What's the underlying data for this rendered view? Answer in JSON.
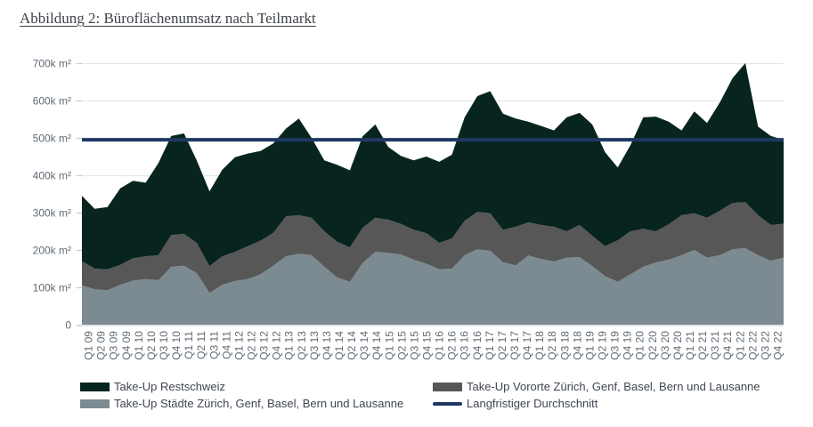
{
  "title": "Abbildung 2: Büroflächenumsatz nach Teilmarkt",
  "colors": {
    "staedte": "#7C8B92",
    "vororte": "#575757",
    "restschweiz": "#07241E",
    "durchschnitt": "#1F3864",
    "grid": "#E4E8E9",
    "tick": "#C2CBD0",
    "axis_text": "#606B75",
    "title_text": "#3E434A"
  },
  "legend": {
    "items": [
      {
        "id": "restschweiz",
        "label": "Take-Up Restschweiz",
        "swatch": "area",
        "color_key": "restschweiz"
      },
      {
        "id": "vororte",
        "label": "Take-Up Vororte Zürich, Genf, Basel, Bern und Lausanne",
        "swatch": "area",
        "color_key": "vororte"
      },
      {
        "id": "staedte",
        "label": "Take-Up Städte Zürich, Genf, Basel, Bern und Lausanne",
        "swatch": "area",
        "color_key": "staedte"
      },
      {
        "id": "durchschnitt",
        "label": "Langfristiger Durchschnitt",
        "swatch": "line",
        "color_key": "durchschnitt"
      }
    ]
  },
  "chart_data": {
    "type": "area",
    "stacked": true,
    "title": "Abbildung 2: Büroflächenumsatz nach Teilmarkt",
    "unit": "1000 m² (labels shown as k m²)",
    "ylim": [
      0,
      700
    ],
    "grid": true,
    "legend_position": "bottom",
    "y_ticks": [
      {
        "value": 700,
        "label": "700k m²"
      },
      {
        "value": 600,
        "label": "600k m²"
      },
      {
        "value": 500,
        "label": "500k m²"
      },
      {
        "value": 400,
        "label": "400k m²"
      },
      {
        "value": 300,
        "label": "300k m²"
      },
      {
        "value": 200,
        "label": "200k m²"
      },
      {
        "value": 100,
        "label": "100k m²"
      },
      {
        "value": 0,
        "label": "0"
      }
    ],
    "x_labels": [
      "Q1 09",
      "Q2 09",
      "Q3 09",
      "Q4 09",
      "Q1 10",
      "Q2 10",
      "Q3 10",
      "Q4 10",
      "Q1 11",
      "Q2 11",
      "Q3 11",
      "Q4 11",
      "Q1 12",
      "Q2 12",
      "Q3 12",
      "Q4 12",
      "Q1 13",
      "Q2 13",
      "Q3 13",
      "Q4 13",
      "Q1 14",
      "Q2 14",
      "Q3 14",
      "Q4 14",
      "Q1 15",
      "Q2 15",
      "Q3 15",
      "Q4 15",
      "Q1 16",
      "Q2 16",
      "Q3 16",
      "Q4 16",
      "Q1 17",
      "Q2 17",
      "Q3 17",
      "Q4 17",
      "Q1 18",
      "Q2 18",
      "Q3 18",
      "Q4 18",
      "Q1 19",
      "Q2 19",
      "Q3 19",
      "Q4 19",
      "Q1 20",
      "Q2 20",
      "Q3 20",
      "Q4 20",
      "Q1 21",
      "Q2 21",
      "Q3 21",
      "Q4 21",
      "Q1 22",
      "Q2 22",
      "Q3 22",
      "Q4 22"
    ],
    "series": [
      {
        "name": "Take-Up Städte Zürich, Genf, Basel, Bern und Lausanne",
        "color_key": "staedte",
        "values": [
          105,
          95,
          92,
          107,
          118,
          122,
          119,
          155,
          158,
          138,
          85,
          107,
          117,
          122,
          135,
          158,
          183,
          190,
          186,
          155,
          127,
          115,
          165,
          195,
          192,
          188,
          174,
          163,
          148,
          150,
          186,
          202,
          198,
          167,
          159,
          185,
          176,
          169,
          179,
          181,
          157,
          130,
          115,
          135,
          155,
          167,
          174,
          186,
          200,
          179,
          186,
          202,
          205,
          186,
          171,
          180
        ]
      },
      {
        "name": "Take-Up Vororte Zürich, Genf, Basel, Bern und Lausanne",
        "color_key": "vororte",
        "values": [
          65,
          55,
          56,
          53,
          60,
          61,
          67,
          85,
          85,
          81,
          72,
          76,
          78,
          88,
          90,
          88,
          107,
          103,
          100,
          95,
          95,
          92,
          94,
          91,
          89,
          82,
          80,
          82,
          71,
          81,
          92,
          100,
          100,
          87,
          103,
          89,
          91,
          93,
          71,
          86,
          81,
          80,
          111,
          115,
          102,
          83,
          95,
          107,
          98,
          107,
          119,
          124,
          123,
          107,
          96,
          90
        ]
      },
      {
        "name": "Take-Up Restschweiz",
        "color_key": "restschweiz",
        "values": [
          175,
          160,
          167,
          205,
          207,
          197,
          247,
          265,
          269,
          221,
          200,
          232,
          253,
          248,
          240,
          239,
          235,
          259,
          214,
          190,
          206,
          206,
          245,
          250,
          195,
          182,
          186,
          205,
          217,
          224,
          277,
          310,
          327,
          311,
          290,
          269,
          265,
          258,
          305,
          300,
          298,
          252,
          195,
          231,
          298,
          307,
          274,
          227,
          273,
          254,
          290,
          334,
          372,
          237,
          238,
          225
        ]
      }
    ],
    "reference_line": {
      "name": "Langfristiger Durchschnitt",
      "value": 495,
      "color_key": "durchschnitt"
    }
  }
}
